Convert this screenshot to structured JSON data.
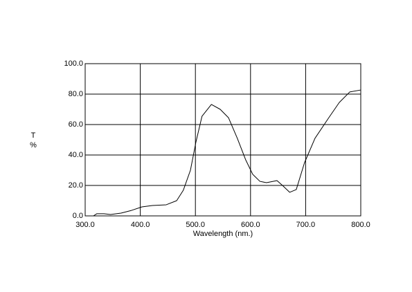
{
  "chart_data": {
    "type": "line",
    "xlabel": "Wavelength (nm.)",
    "ylabel": [
      "T",
      "%"
    ],
    "xlim": [
      300,
      800
    ],
    "ylim": [
      0,
      100
    ],
    "xticks": [
      {
        "value": 300,
        "label": "300.0"
      },
      {
        "value": 400,
        "label": "400.0"
      },
      {
        "value": 500,
        "label": "500.0"
      },
      {
        "value": 600,
        "label": "600.0"
      },
      {
        "value": 700,
        "label": "700.0"
      },
      {
        "value": 800,
        "label": "800.0"
      }
    ],
    "yticks": [
      {
        "value": 0,
        "label": "0.0"
      },
      {
        "value": 20,
        "label": "20.0"
      },
      {
        "value": 40,
        "label": "40.0"
      },
      {
        "value": 60,
        "label": "60.0"
      },
      {
        "value": 80,
        "label": "80.0"
      },
      {
        "value": 100,
        "label": "100.0"
      }
    ],
    "grid": true,
    "x": [
      315,
      321,
      334,
      346,
      365,
      384,
      403,
      422,
      447,
      466,
      478,
      491,
      501,
      512,
      529,
      545,
      560,
      576,
      591,
      604,
      617,
      629,
      648,
      658,
      671,
      683,
      698,
      717,
      742,
      761,
      780,
      800
    ],
    "series": [
      {
        "color": "#000000",
        "values": [
          0,
          1.4,
          1.4,
          0.9,
          1.8,
          3.6,
          5.9,
          6.8,
          7.3,
          10,
          16.8,
          30,
          48.6,
          65.5,
          73.2,
          70,
          64.5,
          51,
          37,
          27.3,
          22.7,
          21.8,
          23.2,
          20,
          15.5,
          17.3,
          35,
          51,
          64.5,
          74.5,
          81.4,
          82.7
        ]
      }
    ]
  }
}
